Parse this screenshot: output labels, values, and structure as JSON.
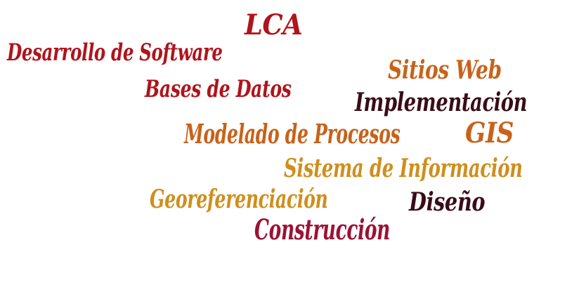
{
  "colors": {
    "crimson": "#b0141c",
    "burnt_orange": "#c8621a",
    "dark_maroon": "#3a0c1a",
    "golden": "#cf8f1d",
    "raspberry": "#9c1235"
  },
  "words": [
    {
      "id": "lca",
      "text": "LCA",
      "color": "#b0141c"
    },
    {
      "id": "desarrollo",
      "text": "Desarrollo de Software",
      "color": "#b0141c"
    },
    {
      "id": "sitios",
      "text": "Sitios Web",
      "color": "#c8621a"
    },
    {
      "id": "bases",
      "text": "Bases de Datos",
      "color": "#b0141c"
    },
    {
      "id": "implementacion",
      "text": "Implementación",
      "color": "#3a0c1a"
    },
    {
      "id": "modelado",
      "text": "Modelado de Procesos",
      "color": "#c8621a"
    },
    {
      "id": "gis",
      "text": "GIS",
      "color": "#c8621a"
    },
    {
      "id": "sistema",
      "text": "Sistema de Información",
      "color": "#cf8f1d"
    },
    {
      "id": "georeferenciacion",
      "text": "Georeferenciación",
      "color": "#cf8f1d"
    },
    {
      "id": "diseno",
      "text": "Diseño",
      "color": "#3a0c1a"
    },
    {
      "id": "construccion",
      "text": "Construcción",
      "color": "#9c1235"
    }
  ]
}
